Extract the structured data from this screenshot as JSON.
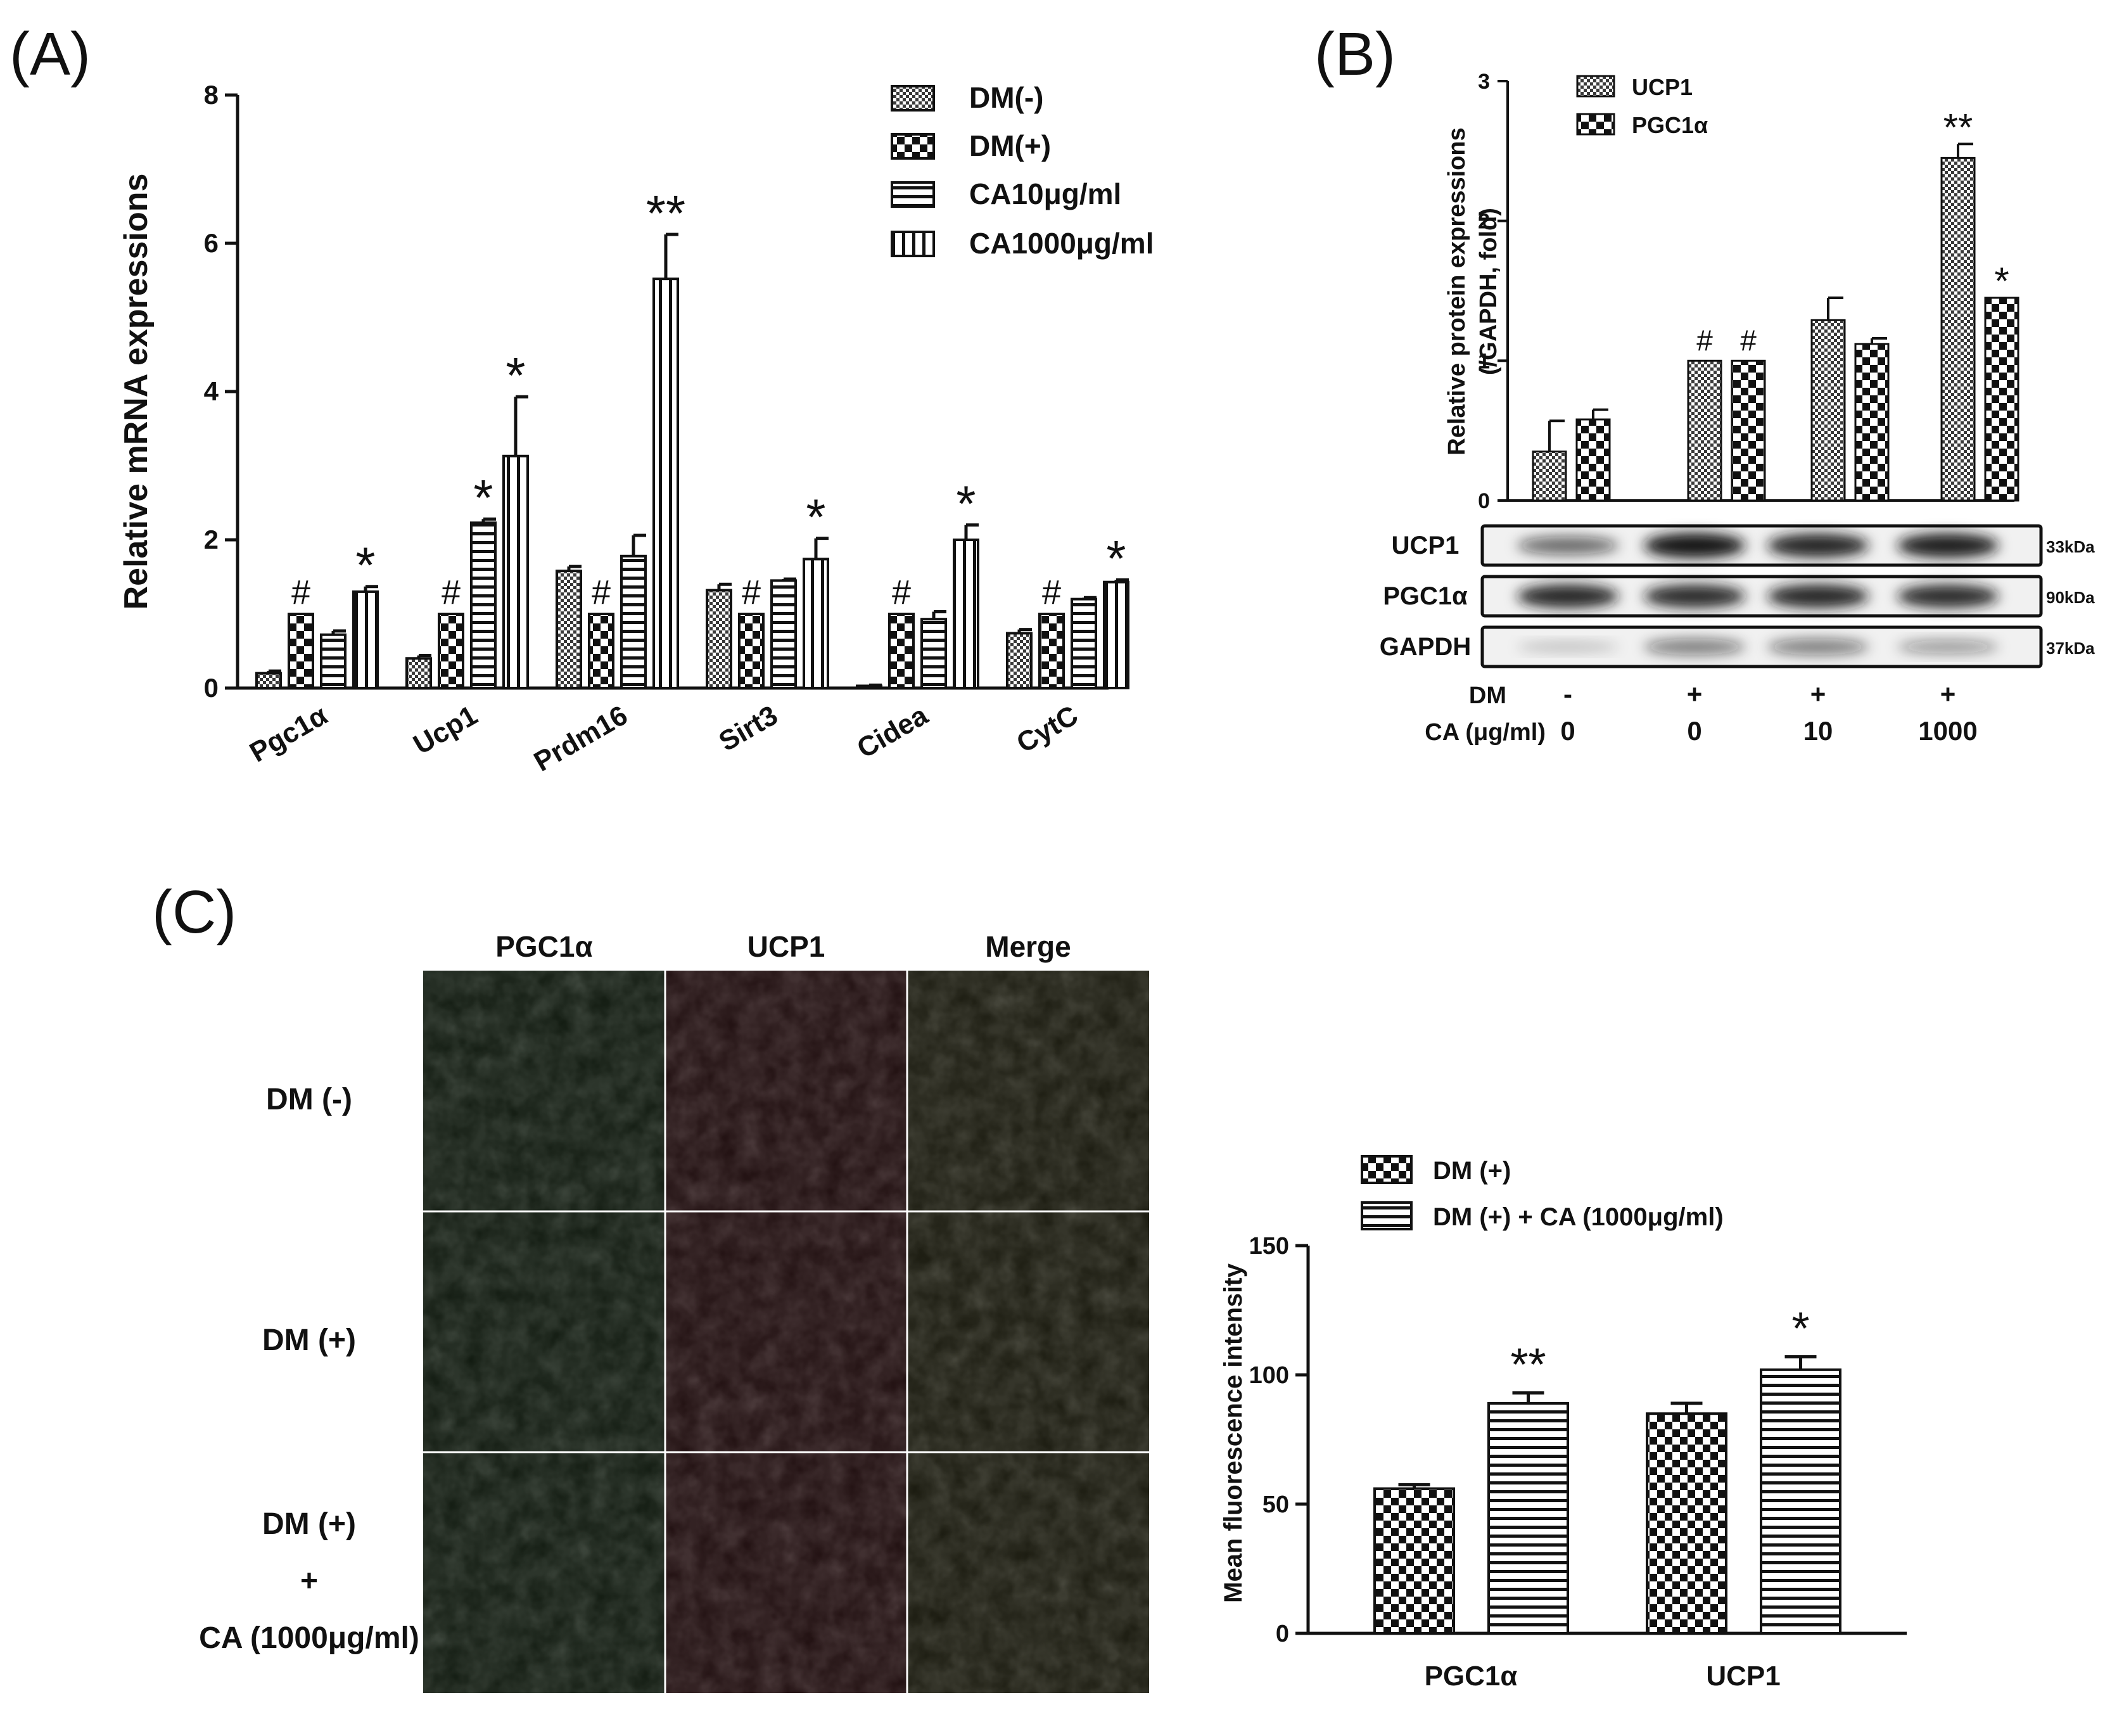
{
  "panels": {
    "a": "(A)",
    "b": "(B)",
    "c": "(C)"
  },
  "chart_data": [
    {
      "id": "A",
      "type": "bar",
      "ylabel": "Relative mRNA expressions",
      "ylim": [
        0,
        8
      ],
      "yticks": [
        "0",
        "2",
        "4",
        "6",
        "8"
      ],
      "categories": [
        "Pgc1α",
        "Ucp1",
        "Prdm16",
        "Sirt3",
        "Cidea",
        "CytC"
      ],
      "legend_position": "top-right",
      "series": [
        {
          "name": "DM(-)",
          "pattern": "checker",
          "values": [
            0.2,
            0.4,
            1.58,
            1.32,
            0.03,
            0.74
          ],
          "errors": [
            0.03,
            0.04,
            0.06,
            0.08,
            0.01,
            0.05
          ]
        },
        {
          "name": "DM(+)",
          "pattern": "bigchecker",
          "values": [
            1.0,
            1.0,
            1.0,
            1.0,
            1.0,
            1.0
          ],
          "errors": [
            0,
            0,
            0,
            0,
            0,
            0
          ]
        },
        {
          "name": "CA10μg/ml",
          "pattern": "hlines",
          "values": [
            0.72,
            2.23,
            1.78,
            1.45,
            0.93,
            1.2
          ],
          "errors": [
            0.05,
            0.05,
            0.28,
            0.02,
            0.1,
            0.02
          ]
        },
        {
          "name": "CA1000μg/ml",
          "pattern": "vlines",
          "values": [
            1.3,
            3.13,
            5.52,
            1.74,
            2.0,
            1.43
          ],
          "errors": [
            0.07,
            0.8,
            0.6,
            0.28,
            0.2,
            0.03
          ]
        }
      ],
      "annotations": [
        {
          "series": 1,
          "category": 0,
          "text": "#"
        },
        {
          "series": 3,
          "category": 0,
          "text": "*"
        },
        {
          "series": 1,
          "category": 1,
          "text": "#"
        },
        {
          "series": 2,
          "category": 1,
          "text": "*"
        },
        {
          "series": 3,
          "category": 1,
          "text": "*"
        },
        {
          "series": 1,
          "category": 2,
          "text": "#"
        },
        {
          "series": 3,
          "category": 2,
          "text": "**"
        },
        {
          "series": 1,
          "category": 3,
          "text": "#"
        },
        {
          "series": 3,
          "category": 3,
          "text": "*"
        },
        {
          "series": 1,
          "category": 4,
          "text": "#"
        },
        {
          "series": 3,
          "category": 4,
          "text": "*"
        },
        {
          "series": 1,
          "category": 5,
          "text": "#"
        },
        {
          "series": 3,
          "category": 5,
          "text": "*"
        }
      ]
    },
    {
      "id": "B",
      "type": "bar",
      "ylabel_line1": "Relative protein expressions",
      "ylabel_line2": "(/GAPDH, fold)",
      "ylim": [
        0,
        3
      ],
      "yticks": [
        "0",
        "1",
        "2",
        "3"
      ],
      "legend_position": "top-left",
      "series": [
        {
          "name": "UCP1",
          "pattern": "checker",
          "values": [
            0.35,
            1.0,
            1.29,
            2.45
          ],
          "errors": [
            0.22,
            0,
            0.16,
            0.1
          ]
        },
        {
          "name": "PGC1α",
          "pattern": "bigchecker",
          "values": [
            0.58,
            1.0,
            1.12,
            1.45
          ],
          "errors": [
            0.07,
            0,
            0.04,
            0
          ]
        }
      ],
      "annotations": [
        {
          "series": 0,
          "category": 1,
          "text": "#"
        },
        {
          "series": 1,
          "category": 1,
          "text": "#"
        },
        {
          "series": 0,
          "category": 3,
          "text": "**"
        },
        {
          "series": 1,
          "category": 3,
          "text": "*"
        }
      ],
      "blot": {
        "rows": [
          {
            "label": "UCP1",
            "size": "33kDa",
            "intensity": [
              0.55,
              1.0,
              0.92,
              0.95
            ]
          },
          {
            "label": "PGC1α",
            "size": "90kDa",
            "intensity": [
              0.9,
              0.88,
              0.9,
              0.88
            ]
          },
          {
            "label": "GAPDH",
            "size": "37kDa",
            "intensity": [
              0.08,
              0.45,
              0.45,
              0.3
            ]
          }
        ],
        "conditions": [
          {
            "label": "DM",
            "values": [
              "-",
              "+",
              "+",
              "+"
            ]
          },
          {
            "label": "CA (μg/ml)",
            "values": [
              "0",
              "0",
              "10",
              "1000"
            ]
          }
        ]
      }
    },
    {
      "id": "C",
      "type": "bar",
      "ylabel": "Mean fluorescence intensity",
      "ylim": [
        0,
        150
      ],
      "yticks": [
        "0",
        "50",
        "100",
        "150"
      ],
      "categories": [
        "PGC1α",
        "UCP1"
      ],
      "legend_position": "top",
      "series": [
        {
          "name": "DM (+)",
          "pattern": "bigchecker",
          "values": [
            56,
            85
          ],
          "errors": [
            1.5,
            4
          ]
        },
        {
          "name": "DM (+) + CA (1000μg/ml)",
          "pattern": "hlines",
          "values": [
            89,
            102
          ],
          "errors": [
            4,
            5
          ]
        }
      ],
      "annotations": [
        {
          "series": 1,
          "category": 0,
          "text": "**"
        },
        {
          "series": 1,
          "category": 1,
          "text": "*"
        }
      ]
    }
  ],
  "microscopy": {
    "columns": [
      "PGC1α",
      "UCP1",
      "Merge"
    ],
    "rows": [
      {
        "lines": [
          "DM (-)"
        ]
      },
      {
        "lines": [
          "DM (+)"
        ]
      },
      {
        "lines": [
          "DM (+)",
          "+",
          "CA (1000μg/ml)"
        ]
      }
    ],
    "channel_colors": [
      "#3f8f3a",
      "#b3282e",
      "#8f8a34"
    ]
  }
}
